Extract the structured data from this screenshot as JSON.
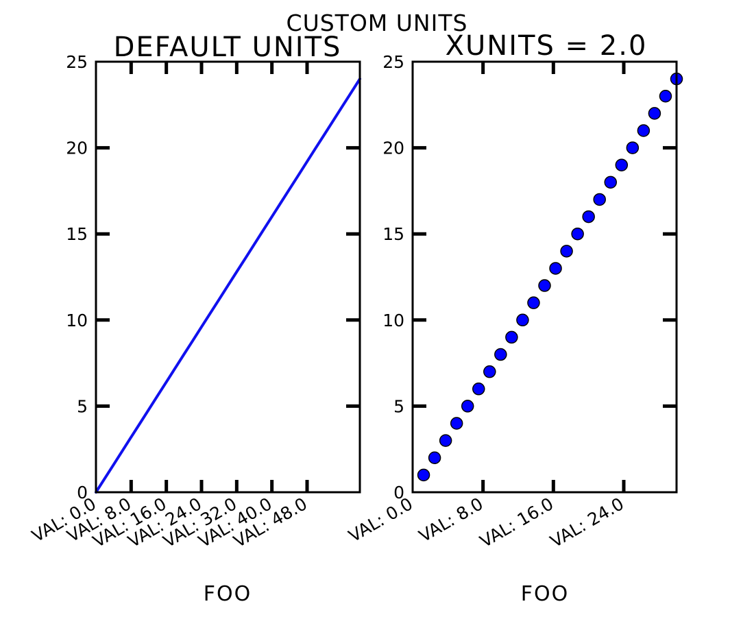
{
  "figure": {
    "suptitle": "CUSTOM UNITS"
  },
  "chart_data": [
    {
      "type": "line",
      "title": "DEFAULT UNITS",
      "xlabel": "FOO",
      "ylabel": "",
      "xlim": [
        0,
        60
      ],
      "ylim": [
        0,
        25
      ],
      "xticks": [
        0,
        8,
        16,
        24,
        32,
        40,
        48
      ],
      "xticklabels": [
        "VAL: 0.0",
        "VAL: 8.0",
        "VAL: 16.0",
        "VAL: 24.0",
        "VAL: 32.0",
        "VAL: 40.0",
        "VAL: 48.0"
      ],
      "yticks": [
        0,
        5,
        10,
        15,
        20,
        25
      ],
      "yticklabels": [
        "0",
        "5",
        "10",
        "15",
        "20",
        "25"
      ],
      "grid": false,
      "series": [
        {
          "color": "#1010ee",
          "x": [
            0,
            2,
            4,
            6,
            8,
            10,
            12,
            14,
            16,
            18,
            20,
            22,
            24,
            26,
            28,
            30,
            32,
            34,
            36,
            38,
            40,
            42,
            44,
            46,
            48,
            50,
            52,
            54,
            56,
            58,
            60
          ],
          "y": [
            0,
            0.8,
            1.6,
            2.4,
            3.2,
            4.0,
            4.8,
            5.6,
            6.4,
            7.2,
            8.0,
            8.8,
            9.6,
            10.4,
            11.2,
            12.0,
            12.8,
            13.6,
            14.4,
            15.2,
            16.0,
            16.8,
            17.6,
            18.4,
            19.2,
            20.0,
            20.8,
            21.6,
            22.4,
            23.2,
            24.0
          ]
        }
      ]
    },
    {
      "type": "scatter",
      "title": "XUNITS = 2.0",
      "xlabel": "FOO",
      "ylabel": "",
      "xlim": [
        0,
        30
      ],
      "ylim": [
        0,
        25
      ],
      "xticks": [
        0,
        8,
        16,
        24
      ],
      "xticklabels": [
        "VAL: 0.0",
        "VAL: 8.0",
        "VAL: 16.0",
        "VAL: 24.0"
      ],
      "yticks": [
        0,
        5,
        10,
        15,
        20,
        25
      ],
      "yticklabels": [
        "0",
        "5",
        "10",
        "15",
        "20",
        "25"
      ],
      "grid": false,
      "series": [
        {
          "color": "#0000ff",
          "edgecolor": "#000000",
          "x": [
            1.25,
            2.5,
            3.75,
            5.0,
            6.25,
            7.5,
            8.75,
            10.0,
            11.25,
            12.5,
            13.75,
            15.0,
            16.25,
            17.5,
            18.75,
            20.0,
            21.25,
            22.5,
            23.75,
            25.0,
            26.25,
            27.5,
            28.75,
            30.0
          ],
          "y": [
            1,
            2,
            3,
            4,
            5,
            6,
            7,
            8,
            9,
            10,
            11,
            12,
            13,
            14,
            15,
            16,
            17,
            18,
            19,
            20,
            21,
            22,
            23,
            24
          ]
        }
      ]
    }
  ]
}
